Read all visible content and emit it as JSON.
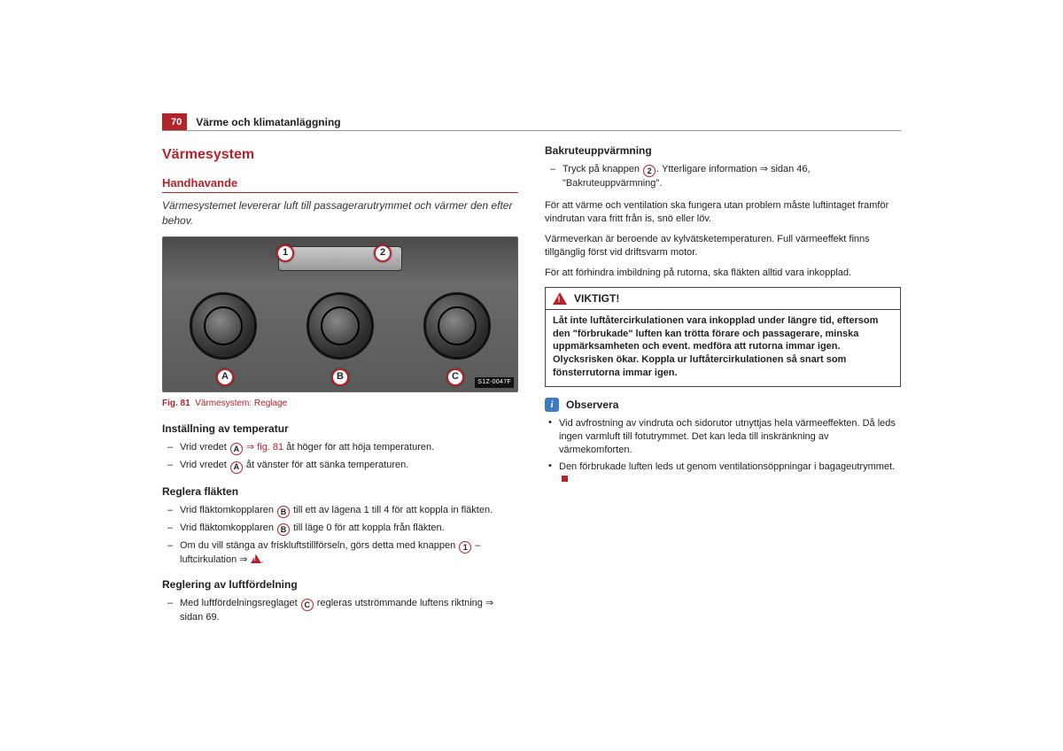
{
  "colors": {
    "accent": "#b3232a",
    "text": "#222222",
    "border": "#444444",
    "info": "#3b7bbf",
    "background": "#ffffff"
  },
  "page": {
    "number": "70",
    "title": "Värme och klimatanläggning"
  },
  "h2": "Värmesystem",
  "h3": "Handhavande",
  "lead": "Värmesystemet levererar luft till passagerarutrymmet och värmer den efter behov.",
  "figure": {
    "badge": "S1Z-0047F",
    "callouts": {
      "c1": "1",
      "c2": "2",
      "ca": "A",
      "cb": "B",
      "cc": "C"
    },
    "caption_prefix": "Fig. 81",
    "caption_text": "Värmesystem: Reglage"
  },
  "temp": {
    "heading": "Inställning av temperatur",
    "i1a": "Vrid vredet ",
    "i1b": " ⇒ ",
    "i1c": " åt höger för att höja temperaturen.",
    "figref": "fig. 81",
    "i2a": "Vrid vredet ",
    "i2b": " åt vänster för att sänka temperaturen.",
    "ref": "A"
  },
  "fan": {
    "heading": "Reglera fläkten",
    "i1a": "Vrid fläktomkopplaren ",
    "i1b": " till ett av lägena 1 till 4 för att koppla in fläkten.",
    "i2a": "Vrid fläktomkopplaren ",
    "i2b": " till läge 0 för att koppla från fläkten.",
    "i3a": "Om du vill stänga av friskluftstillförseln, görs detta med knappen ",
    "i3b": " – luftcirkulation ⇒ ",
    "i3c": ".",
    "refB": "B",
    "ref1": "1"
  },
  "air": {
    "heading": "Reglering av luftfördelning",
    "i1a": "Med luftfördelningsreglaget ",
    "i1b": " regleras utströmmande luftens riktning ⇒ sidan 69.",
    "refC": "C"
  },
  "rear": {
    "heading": "Bakruteuppvärmning",
    "i1a": "Tryck på knappen ",
    "i1b": ". Ytterligare information ⇒ sidan 46, \"Bakruteuppvärmning\".",
    "ref2": "2"
  },
  "paras": {
    "p1": "För att värme och ventilation ska fungera utan problem måste luftintaget framför vindrutan vara fritt från is, snö eller löv.",
    "p2": "Värmeverkan är beroende av kylvätsketemperaturen. Full värmeeffekt finns tillgänglig först vid driftsvarm motor.",
    "p3": "För att förhindra imbildning på rutorna, ska fläkten alltid vara inkopplad."
  },
  "warn": {
    "title": "VIKTIGT!",
    "body": "Låt inte luftåtercirkulationen vara inkopplad under längre tid, eftersom den \"förbrukade\" luften kan trötta förare och passagerare, minska uppmärksamheten och event. medföra att rutorna immar igen. Olycksrisken ökar. Koppla ur luftåtercirkulationen så snart som fönsterrutorna immar igen."
  },
  "note": {
    "title": "Observera",
    "b1": "Vid avfrostning av vindruta och sidorutor utnyttjas hela värmeeffekten. Då leds ingen varmluft till fotutrymmet. Det kan leda till inskränkning av värmekomforten.",
    "b2": "Den förbrukade luften leds ut genom ventilationsöppningar i bagageutrymmet."
  }
}
